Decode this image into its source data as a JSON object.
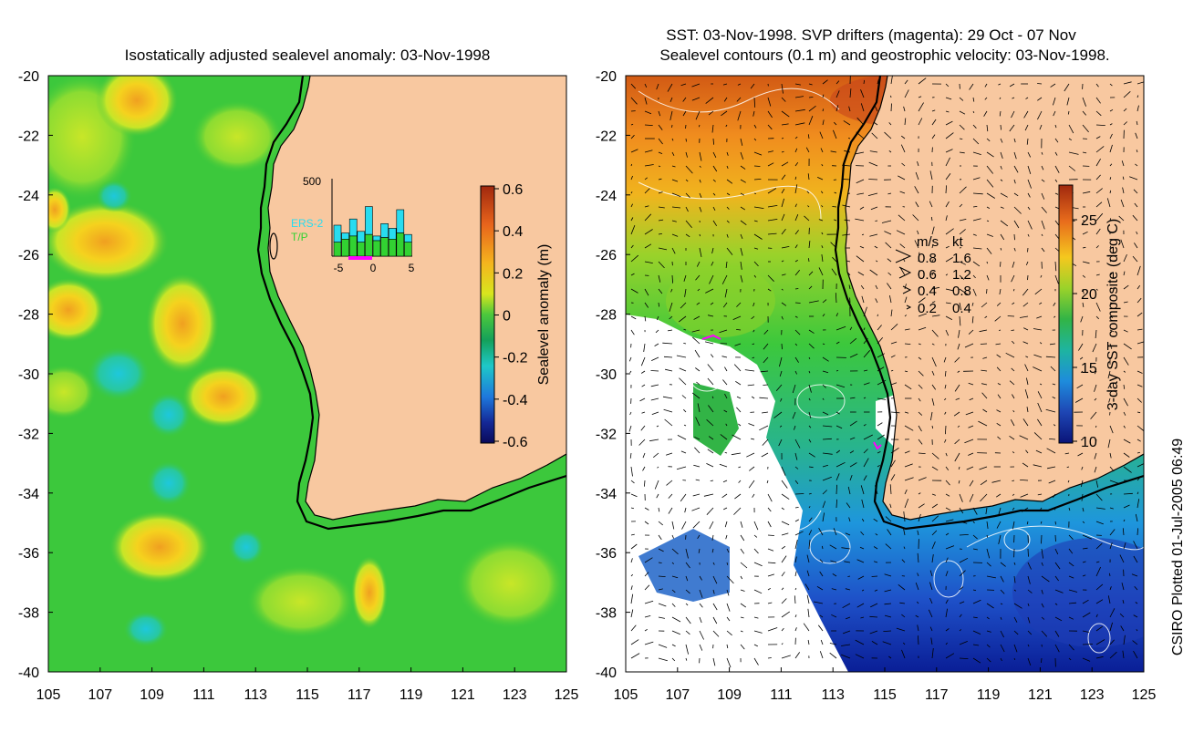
{
  "left_panel": {
    "title": "Isostatically adjusted sealevel anomaly: 03-Nov-1998",
    "colorbar": {
      "label": "Sealevel anomaly (m)",
      "ticks": [
        "0.6",
        "0.4",
        "0.2",
        "0",
        "-0.2",
        "-0.4",
        "-0.6"
      ],
      "colors": [
        "#a0280e",
        "#e8641c",
        "#f5b41e",
        "#d8e61e",
        "#4cc83c",
        "#14a05a",
        "#1ec8c8",
        "#1e78dc",
        "#142896",
        "#0a0a5a"
      ]
    },
    "inset_histogram": {
      "y_max_label": "500",
      "series_labels": [
        "ERS-2",
        "T/P"
      ],
      "x_ticks": [
        "-5",
        "0",
        "5"
      ],
      "ers2": [
        200,
        150,
        240,
        160,
        320,
        130,
        210,
        180,
        300,
        140
      ],
      "tp": [
        90,
        110,
        130,
        90,
        140,
        100,
        120,
        110,
        150,
        90
      ],
      "ers2_color": "#28dcf0",
      "tp_color": "#32d232",
      "window_color": "#ff00ff"
    }
  },
  "right_panel": {
    "title_line1": "SST: 03-Nov-1998. SVP drifters (magenta): 29 Oct - 07 Nov",
    "title_line2": "Sealevel contours (0.1 m) and geostrophic velocity: 03-Nov-1998.",
    "colorbar": {
      "label": "3-day SST composite (deg C)",
      "ticks": [
        "25",
        "20",
        "15",
        "10"
      ],
      "colors": [
        "#a0280e",
        "#e86c1c",
        "#f5c81e",
        "#9ad22a",
        "#32b446",
        "#1eb4a0",
        "#1e8cdc",
        "#1e46b4",
        "#0a1478"
      ]
    },
    "velocity_legend": {
      "header_ms": "m/s",
      "header_kt": "kt",
      "rows": [
        {
          "ms": "0.8",
          "kt": "1.6"
        },
        {
          "ms": "0.6",
          "kt": "1.2"
        },
        {
          "ms": "0.4",
          "kt": "0.8"
        },
        {
          "ms": "0.2",
          "kt": "0.4"
        }
      ]
    }
  },
  "axes": {
    "lat_ticks": [
      "-20",
      "-22",
      "-24",
      "-26",
      "-28",
      "-30",
      "-32",
      "-34",
      "-36",
      "-38",
      "-40"
    ],
    "lon_ticks": [
      "105",
      "107",
      "109",
      "111",
      "113",
      "115",
      "117",
      "119",
      "121",
      "123",
      "125"
    ]
  },
  "colors": {
    "land": "#f8c8a0",
    "ocean_left": "#3cc83c",
    "shelf_contour": "#000000"
  },
  "credit": "CSIRO Plotted 01-Jul-2005 06:49"
}
